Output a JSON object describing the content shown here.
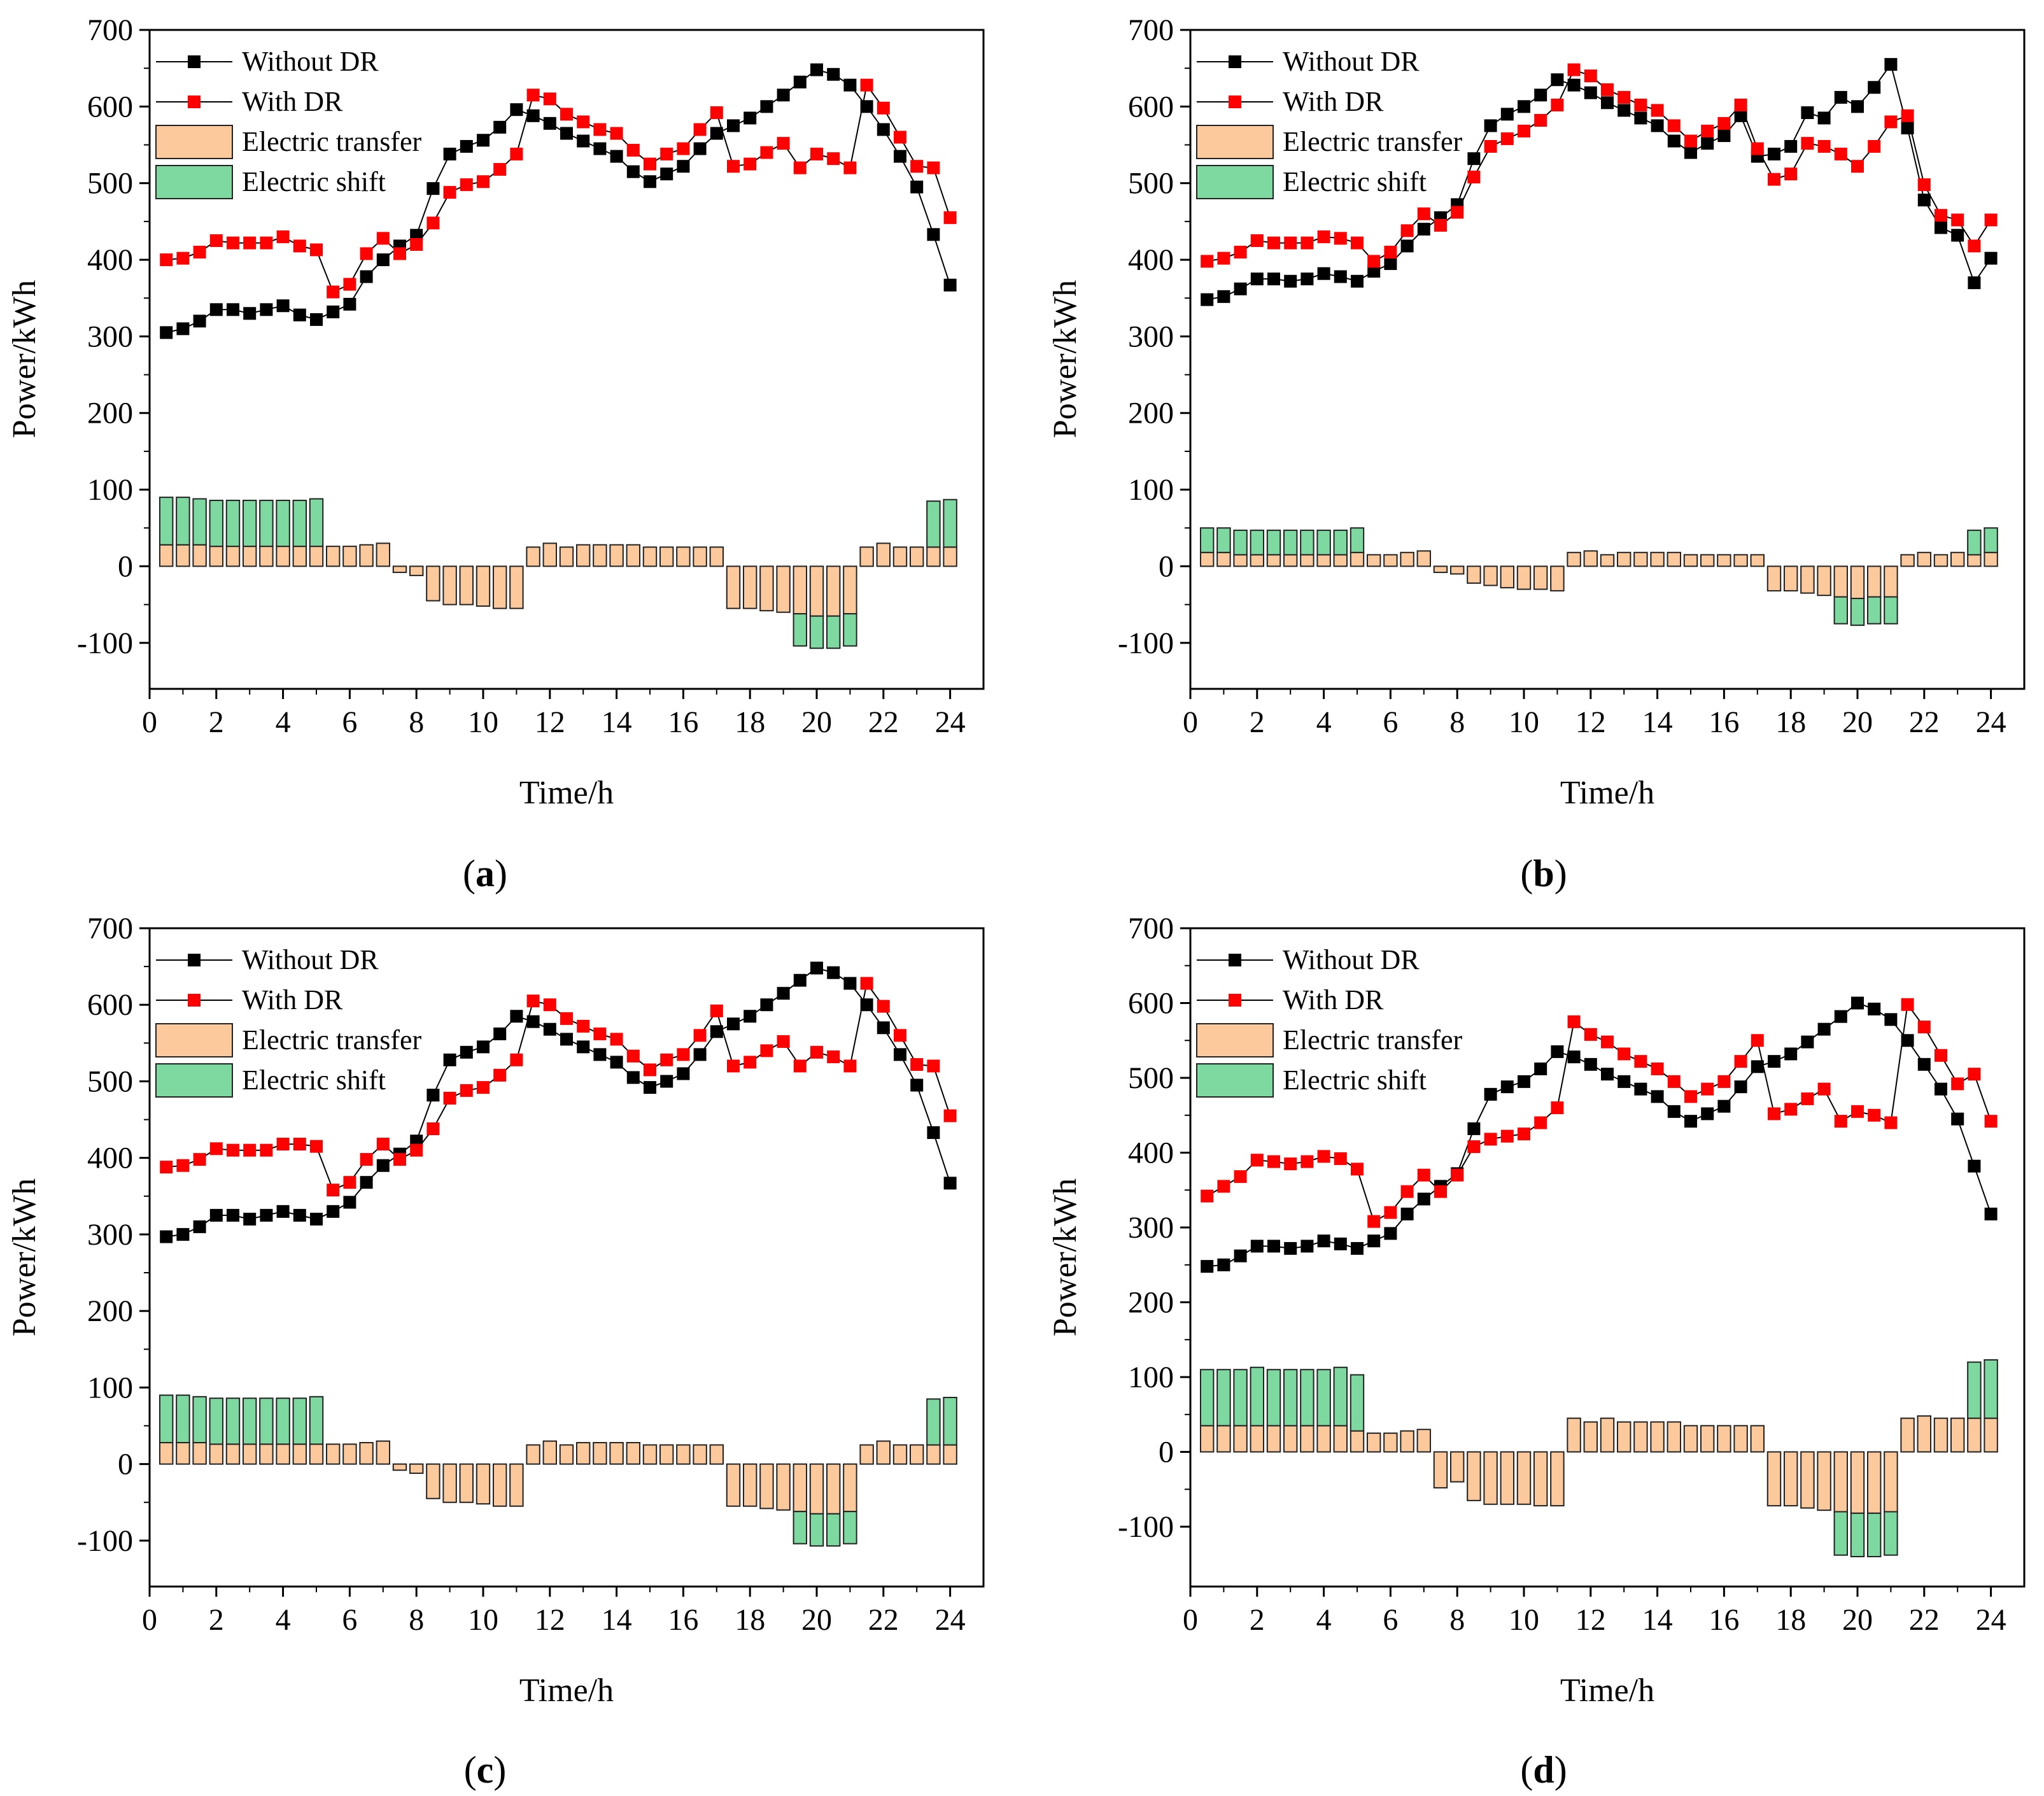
{
  "figure": {
    "title": ""
  },
  "legend": {
    "without": "Without DR",
    "with": "With DR",
    "transfer": "Electric transfer",
    "shift": "Electric shift"
  },
  "colors": {
    "without": "#000000",
    "with": "#ff0000",
    "transfer": "#fcc99c",
    "shift": "#7dd9a0",
    "bar_edge": "#222222"
  },
  "chart_data": [
    {
      "panel": "a",
      "caption": "(a)",
      "type": "line+bar",
      "xlabel": "Time/h",
      "ylabel": "Power/kWh",
      "xlim": [
        0,
        25
      ],
      "ylim": [
        -160,
        700
      ],
      "xticks": [
        "0",
        "2",
        "4",
        "6",
        "8",
        "10",
        "12",
        "14",
        "16",
        "18",
        "20",
        "22",
        "24"
      ],
      "yticks": [
        "-100",
        "0",
        "100",
        "200",
        "300",
        "400",
        "500",
        "600",
        "700"
      ],
      "x": [
        0.5,
        1,
        1.5,
        2,
        2.5,
        3,
        3.5,
        4,
        4.5,
        5,
        5.5,
        6,
        6.5,
        7,
        7.5,
        8,
        8.5,
        9,
        9.5,
        10,
        10.5,
        11,
        11.5,
        12,
        12.5,
        13,
        13.5,
        14,
        14.5,
        15,
        15.5,
        16,
        16.5,
        17,
        17.5,
        18,
        18.5,
        19,
        19.5,
        20,
        20.5,
        21,
        21.5,
        22,
        22.5,
        23,
        23.5,
        24
      ],
      "series": [
        {
          "name": "Without DR",
          "values": [
            305,
            310,
            320,
            335,
            335,
            330,
            335,
            340,
            328,
            322,
            332,
            342,
            378,
            400,
            418,
            432,
            493,
            538,
            548,
            556,
            573,
            596,
            588,
            578,
            565,
            555,
            545,
            535,
            515,
            502,
            512,
            522,
            545,
            565,
            575,
            585,
            600,
            615,
            632,
            648,
            642,
            628,
            600,
            570,
            535,
            495,
            433,
            367
          ]
        },
        {
          "name": "With DR",
          "values": [
            400,
            402,
            410,
            425,
            422,
            422,
            422,
            430,
            418,
            413,
            358,
            368,
            408,
            428,
            408,
            420,
            448,
            488,
            498,
            502,
            518,
            538,
            615,
            610,
            590,
            580,
            570,
            565,
            543,
            525,
            538,
            545,
            570,
            592,
            522,
            525,
            540,
            552,
            520,
            538,
            532,
            520,
            628,
            598,
            560,
            522,
            520,
            455
          ]
        }
      ],
      "bars": {
        "transfer": [
          28,
          28,
          28,
          26,
          26,
          26,
          26,
          26,
          26,
          26,
          26,
          26,
          28,
          30,
          -8,
          -12,
          -45,
          -50,
          -50,
          -52,
          -55,
          -55,
          25,
          30,
          25,
          28,
          28,
          28,
          28,
          25,
          25,
          25,
          25,
          25,
          -55,
          -55,
          -58,
          -60,
          -62,
          -65,
          -65,
          -62,
          25,
          30,
          25,
          25,
          25,
          25
        ],
        "shift": [
          62,
          62,
          60,
          60,
          60,
          60,
          60,
          60,
          60,
          62,
          0,
          0,
          0,
          0,
          0,
          0,
          0,
          0,
          0,
          0,
          0,
          0,
          0,
          0,
          0,
          0,
          0,
          0,
          0,
          0,
          0,
          0,
          0,
          0,
          0,
          0,
          0,
          0,
          -42,
          -42,
          -42,
          -42,
          0,
          0,
          0,
          0,
          60,
          62
        ]
      }
    },
    {
      "panel": "b",
      "caption": "(b)",
      "type": "line+bar",
      "xlabel": "Time/h",
      "ylabel": "Power/kWh",
      "xlim": [
        0,
        25
      ],
      "ylim": [
        -160,
        700
      ],
      "xticks": [
        "0",
        "2",
        "4",
        "6",
        "8",
        "10",
        "12",
        "14",
        "16",
        "18",
        "20",
        "22",
        "24"
      ],
      "yticks": [
        "-100",
        "0",
        "100",
        "200",
        "300",
        "400",
        "500",
        "600",
        "700"
      ],
      "x": [
        0.5,
        1,
        1.5,
        2,
        2.5,
        3,
        3.5,
        4,
        4.5,
        5,
        5.5,
        6,
        6.5,
        7,
        7.5,
        8,
        8.5,
        9,
        9.5,
        10,
        10.5,
        11,
        11.5,
        12,
        12.5,
        13,
        13.5,
        14,
        14.5,
        15,
        15.5,
        16,
        16.5,
        17,
        17.5,
        18,
        18.5,
        19,
        19.5,
        20,
        20.5,
        21,
        21.5,
        22,
        22.5,
        23,
        23.5,
        24
      ],
      "series": [
        {
          "name": "Without DR",
          "values": [
            348,
            352,
            362,
            375,
            375,
            372,
            375,
            382,
            378,
            372,
            385,
            395,
            418,
            440,
            455,
            472,
            532,
            575,
            590,
            600,
            615,
            635,
            628,
            618,
            605,
            595,
            585,
            575,
            555,
            540,
            552,
            562,
            588,
            535,
            538,
            548,
            592,
            585,
            612,
            600,
            625,
            655,
            572,
            478,
            442,
            432,
            370,
            402
          ]
        },
        {
          "name": "With DR",
          "values": [
            398,
            402,
            410,
            425,
            422,
            422,
            422,
            430,
            428,
            422,
            398,
            410,
            438,
            460,
            445,
            462,
            508,
            548,
            558,
            568,
            582,
            602,
            648,
            640,
            622,
            612,
            602,
            595,
            575,
            555,
            568,
            578,
            602,
            545,
            505,
            512,
            552,
            548,
            538,
            522,
            548,
            580,
            588,
            498,
            458,
            452,
            418,
            452
          ]
        }
      ],
      "bars": {
        "transfer": [
          18,
          18,
          15,
          15,
          15,
          15,
          15,
          15,
          15,
          18,
          15,
          15,
          18,
          20,
          -8,
          -10,
          -22,
          -25,
          -28,
          -30,
          -30,
          -32,
          18,
          20,
          15,
          18,
          18,
          18,
          18,
          15,
          15,
          15,
          15,
          15,
          -32,
          -32,
          -35,
          -38,
          -40,
          -42,
          -40,
          -40,
          15,
          18,
          15,
          18,
          15,
          18
        ],
        "shift": [
          32,
          32,
          32,
          32,
          32,
          32,
          32,
          32,
          32,
          32,
          0,
          0,
          0,
          0,
          0,
          0,
          0,
          0,
          0,
          0,
          0,
          0,
          0,
          0,
          0,
          0,
          0,
          0,
          0,
          0,
          0,
          0,
          0,
          0,
          0,
          0,
          0,
          0,
          -35,
          -35,
          -35,
          -35,
          0,
          0,
          0,
          0,
          32,
          32
        ]
      }
    },
    {
      "panel": "c",
      "caption": "(c)",
      "type": "line+bar",
      "xlabel": "Time/h",
      "ylabel": "Power/kWh",
      "xlim": [
        0,
        25
      ],
      "ylim": [
        -160,
        700
      ],
      "xticks": [
        "0",
        "2",
        "4",
        "6",
        "8",
        "10",
        "12",
        "14",
        "16",
        "18",
        "20",
        "22",
        "24"
      ],
      "yticks": [
        "-100",
        "0",
        "100",
        "200",
        "300",
        "400",
        "500",
        "600",
        "700"
      ],
      "x": [
        0.5,
        1,
        1.5,
        2,
        2.5,
        3,
        3.5,
        4,
        4.5,
        5,
        5.5,
        6,
        6.5,
        7,
        7.5,
        8,
        8.5,
        9,
        9.5,
        10,
        10.5,
        11,
        11.5,
        12,
        12.5,
        13,
        13.5,
        14,
        14.5,
        15,
        15.5,
        16,
        16.5,
        17,
        17.5,
        18,
        18.5,
        19,
        19.5,
        20,
        20.5,
        21,
        21.5,
        22,
        22.5,
        23,
        23.5,
        24
      ],
      "series": [
        {
          "name": "Without DR",
          "values": [
            297,
            300,
            310,
            325,
            325,
            320,
            325,
            330,
            325,
            320,
            330,
            342,
            368,
            390,
            405,
            422,
            482,
            528,
            538,
            545,
            562,
            585,
            578,
            568,
            555,
            545,
            535,
            525,
            505,
            492,
            500,
            510,
            535,
            565,
            575,
            585,
            600,
            615,
            632,
            648,
            642,
            628,
            600,
            570,
            535,
            495,
            433,
            367
          ]
        },
        {
          "name": "With DR",
          "values": [
            388,
            390,
            398,
            412,
            410,
            410,
            410,
            418,
            418,
            415,
            358,
            368,
            398,
            418,
            398,
            410,
            438,
            478,
            488,
            492,
            508,
            528,
            605,
            600,
            582,
            572,
            562,
            555,
            533,
            515,
            528,
            535,
            560,
            592,
            520,
            525,
            540,
            552,
            520,
            538,
            532,
            520,
            628,
            598,
            560,
            522,
            520,
            455
          ]
        }
      ],
      "bars": {
        "transfer": [
          28,
          28,
          28,
          26,
          26,
          26,
          26,
          26,
          26,
          26,
          26,
          26,
          28,
          30,
          -8,
          -12,
          -45,
          -50,
          -50,
          -52,
          -55,
          -55,
          25,
          30,
          25,
          28,
          28,
          28,
          28,
          25,
          25,
          25,
          25,
          25,
          -55,
          -55,
          -58,
          -60,
          -62,
          -65,
          -65,
          -62,
          25,
          30,
          25,
          25,
          25,
          25
        ],
        "shift": [
          62,
          62,
          60,
          60,
          60,
          60,
          60,
          60,
          60,
          62,
          0,
          0,
          0,
          0,
          0,
          0,
          0,
          0,
          0,
          0,
          0,
          0,
          0,
          0,
          0,
          0,
          0,
          0,
          0,
          0,
          0,
          0,
          0,
          0,
          0,
          0,
          0,
          0,
          -42,
          -42,
          -42,
          -42,
          0,
          0,
          0,
          0,
          60,
          62
        ]
      }
    },
    {
      "panel": "d",
      "caption": "(d)",
      "type": "line+bar",
      "xlabel": "Time/h",
      "ylabel": "Power/kWh",
      "xlim": [
        0,
        25
      ],
      "ylim": [
        -180,
        700
      ],
      "xticks": [
        "0",
        "2",
        "4",
        "6",
        "8",
        "10",
        "12",
        "14",
        "16",
        "18",
        "20",
        "22",
        "24"
      ],
      "yticks": [
        "-100",
        "0",
        "100",
        "200",
        "300",
        "400",
        "500",
        "600",
        "700"
      ],
      "x": [
        0.5,
        1,
        1.5,
        2,
        2.5,
        3,
        3.5,
        4,
        4.5,
        5,
        5.5,
        6,
        6.5,
        7,
        7.5,
        8,
        8.5,
        9,
        9.5,
        10,
        10.5,
        11,
        11.5,
        12,
        12.5,
        13,
        13.5,
        14,
        14.5,
        15,
        15.5,
        16,
        16.5,
        17,
        17.5,
        18,
        18.5,
        19,
        19.5,
        20,
        20.5,
        21,
        21.5,
        22,
        22.5,
        23,
        23.5,
        24
      ],
      "series": [
        {
          "name": "Without DR",
          "values": [
            248,
            250,
            262,
            275,
            275,
            272,
            275,
            282,
            278,
            272,
            282,
            292,
            318,
            338,
            355,
            372,
            432,
            478,
            488,
            495,
            512,
            535,
            528,
            518,
            505,
            495,
            485,
            475,
            455,
            442,
            452,
            462,
            488,
            515,
            522,
            532,
            548,
            565,
            582,
            600,
            592,
            578,
            550,
            518,
            485,
            445,
            382,
            318
          ]
        },
        {
          "name": "With DR",
          "values": [
            342,
            355,
            368,
            390,
            388,
            385,
            388,
            395,
            392,
            378,
            308,
            320,
            348,
            370,
            348,
            370,
            408,
            418,
            422,
            425,
            440,
            460,
            575,
            558,
            548,
            532,
            522,
            512,
            495,
            475,
            485,
            495,
            522,
            550,
            452,
            458,
            472,
            485,
            442,
            455,
            450,
            440,
            598,
            568,
            530,
            492,
            505,
            442
          ]
        }
      ],
      "bars": {
        "transfer": [
          35,
          35,
          35,
          35,
          35,
          35,
          35,
          35,
          35,
          28,
          25,
          25,
          28,
          30,
          -48,
          -40,
          -65,
          -70,
          -70,
          -70,
          -72,
          -72,
          45,
          40,
          45,
          40,
          40,
          40,
          40,
          35,
          35,
          35,
          35,
          35,
          -72,
          -72,
          -75,
          -78,
          -80,
          -82,
          -82,
          -80,
          45,
          48,
          45,
          45,
          45,
          45
        ],
        "shift": [
          75,
          75,
          75,
          78,
          75,
          75,
          75,
          75,
          78,
          75,
          0,
          0,
          0,
          0,
          0,
          0,
          0,
          0,
          0,
          0,
          0,
          0,
          0,
          0,
          0,
          0,
          0,
          0,
          0,
          0,
          0,
          0,
          0,
          0,
          0,
          0,
          0,
          0,
          -58,
          -58,
          -58,
          -58,
          0,
          0,
          0,
          0,
          75,
          78
        ]
      }
    }
  ]
}
